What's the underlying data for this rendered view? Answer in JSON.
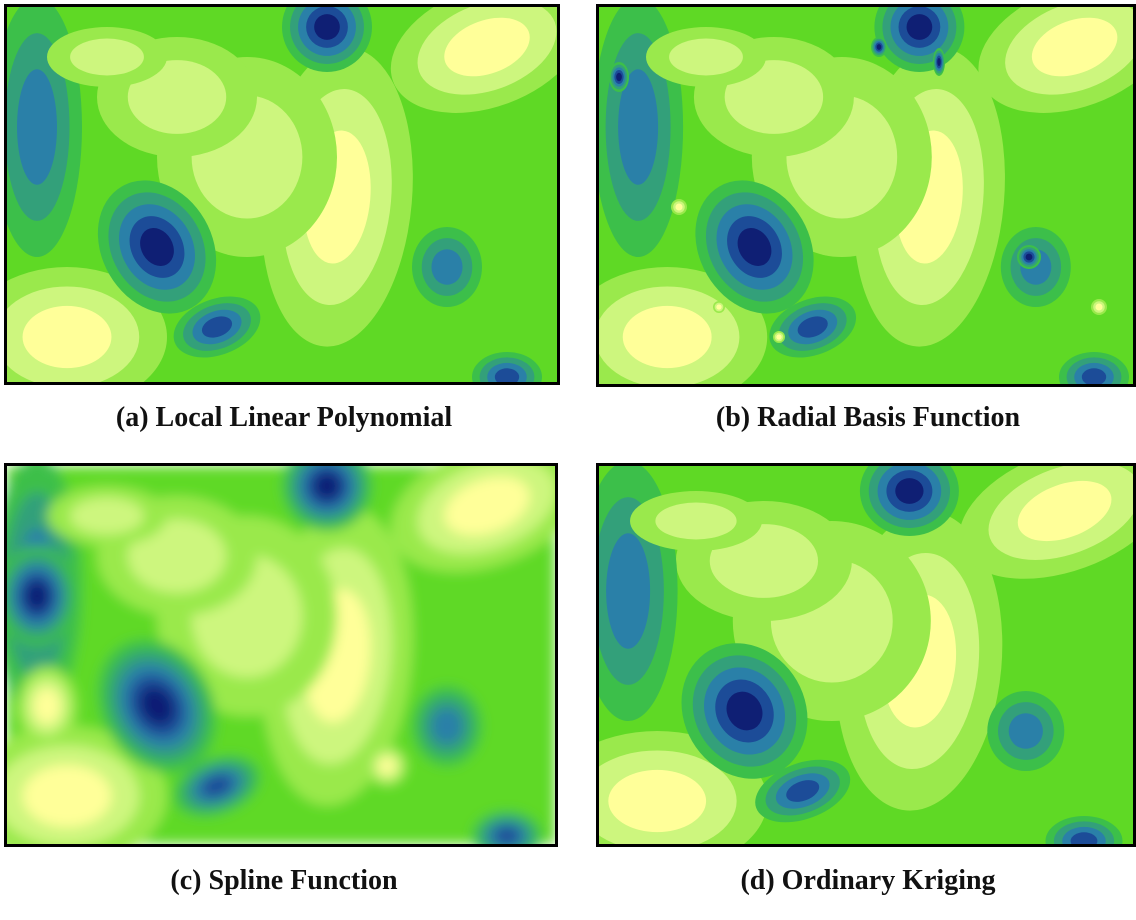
{
  "panels": [
    {
      "caption": "(a) Local Linear Polynomial"
    },
    {
      "caption": "(b) Radial Basis Function"
    },
    {
      "caption": "(c) Spline Function"
    },
    {
      "caption": "(d) Ordinary Kriging"
    }
  ]
}
